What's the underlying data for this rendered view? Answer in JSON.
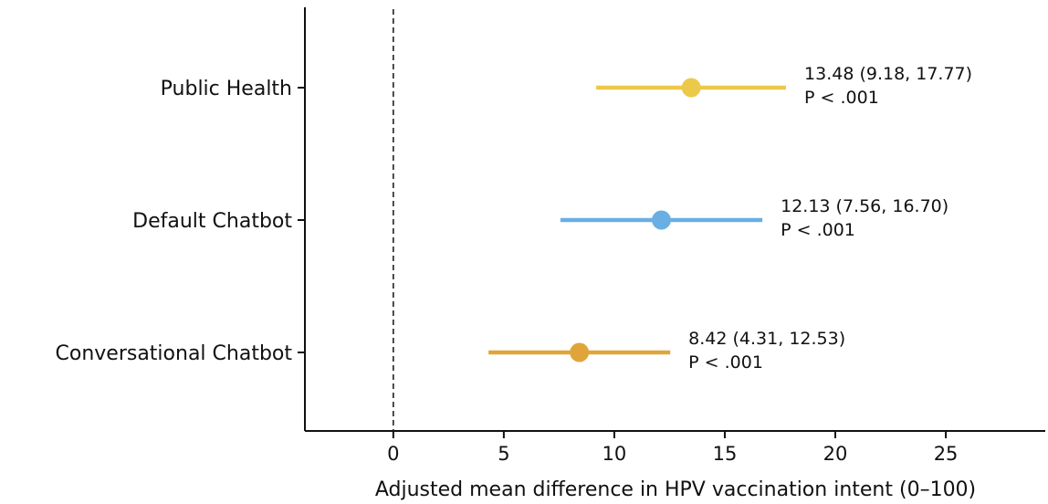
{
  "chart_data": {
    "type": "forest",
    "title": "",
    "xlabel": "Adjusted mean difference in HPV vaccination intent (0–100)",
    "ylabel": "",
    "xlim": [
      -4,
      29.5
    ],
    "xticks": [
      0,
      5,
      10,
      15,
      20,
      25
    ],
    "xtick_labels": [
      "0",
      "5",
      "10",
      "15",
      "20",
      "25"
    ],
    "reference_line": 0,
    "grid": false,
    "rows": [
      {
        "category": "Public Health",
        "estimate": 13.48,
        "ci_low": 9.18,
        "ci_high": 17.77,
        "annotation_ci": "13.48 (9.18, 17.77)",
        "annotation_p": "P < .001",
        "color": "#ecc94b"
      },
      {
        "category": "Default Chatbot",
        "estimate": 12.13,
        "ci_low": 7.56,
        "ci_high": 16.7,
        "annotation_ci": "12.13 (7.56, 16.70)",
        "annotation_p": "P < .001",
        "color": "#6aafe2"
      },
      {
        "category": "Conversational Chatbot",
        "estimate": 8.42,
        "ci_low": 4.31,
        "ci_high": 12.53,
        "annotation_ci": "8.42 (4.31, 12.53)",
        "annotation_p": "P < .001",
        "color": "#e0a53a"
      }
    ]
  }
}
